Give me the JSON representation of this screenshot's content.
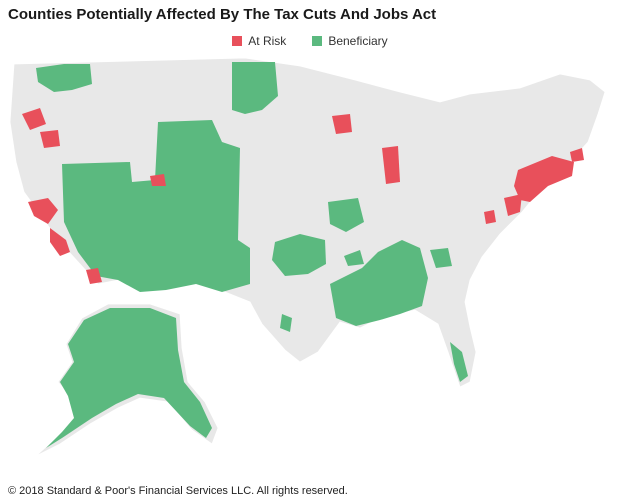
{
  "title": "Counties Potentially Affected By The Tax Cuts And Jobs Act",
  "legend": {
    "at_risk": {
      "label": "At Risk",
      "color": "#e8505b"
    },
    "beneficiary": {
      "label": "Beneficiary",
      "color": "#5bb97f"
    }
  },
  "map": {
    "base_color": "#e8e8e8",
    "border_color": "#ffffff"
  },
  "footer": "© 2018 Standard & Poor's Financial Services LLC. All rights reserved."
}
